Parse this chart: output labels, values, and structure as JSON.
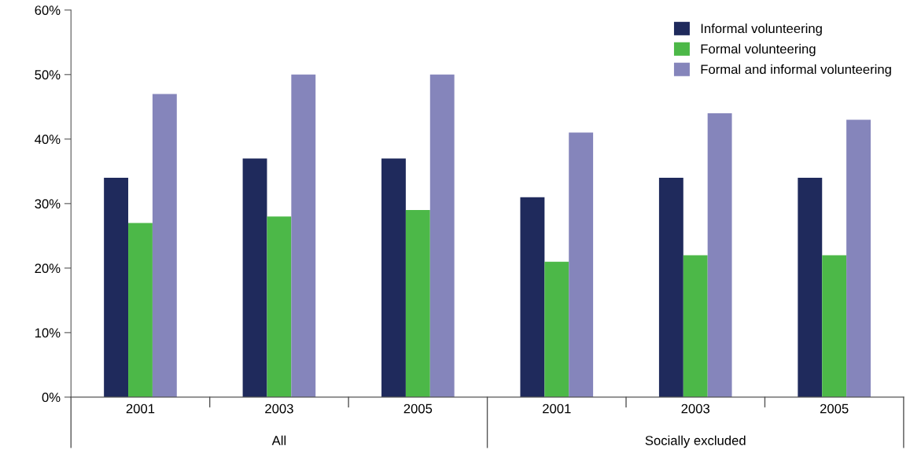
{
  "chart_data": {
    "type": "bar",
    "categories": [
      "2001",
      "2003",
      "2005",
      "2001",
      "2003",
      "2005"
    ],
    "series": [
      {
        "name": "Informal volunteering",
        "color": "#1f2a5c",
        "values": [
          34,
          37,
          37,
          31,
          34,
          34
        ]
      },
      {
        "name": "Formal volunteering",
        "color": "#4cb848",
        "values": [
          27,
          28,
          29,
          21,
          22,
          22
        ]
      },
      {
        "name": "Formal and informal volunteering",
        "color": "#8585bb",
        "values": [
          47,
          50,
          50,
          41,
          44,
          43
        ]
      }
    ],
    "ylim": [
      0,
      60
    ],
    "yticks": [
      {
        "value": 0,
        "label": "0%"
      },
      {
        "value": 10,
        "label": "10%"
      },
      {
        "value": 20,
        "label": "20%"
      },
      {
        "value": 30,
        "label": "30%"
      },
      {
        "value": 40,
        "label": "40%"
      },
      {
        "value": 50,
        "label": "50%"
      },
      {
        "value": 60,
        "label": "60%"
      }
    ],
    "annotations": [
      "All",
      "Socially excluded"
    ],
    "grid": false,
    "legend": "top right"
  }
}
